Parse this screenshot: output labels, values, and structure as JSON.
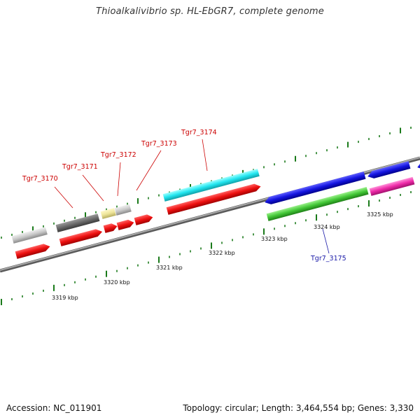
{
  "title": "Thioalkalivibrio sp. HL-EbGR7, complete genome",
  "footer": {
    "accession": "Accession: NC_011901",
    "topology": "Topology: circular; Length: 3,464,554 bp; Genes: 3,330"
  },
  "scale_labels": [
    "3319 kbp",
    "3320 kbp",
    "3321 kbp",
    "3322 kbp",
    "3323 kbp",
    "3324 kbp",
    "3325 kbp"
  ],
  "genes": [
    {
      "name": "Tgr7_3170",
      "color": "#cc0000"
    },
    {
      "name": "Tgr7_3171",
      "color": "#cc0000"
    },
    {
      "name": "Tgr7_3172",
      "color": "#cc0000"
    },
    {
      "name": "Tgr7_3173",
      "color": "#cc0000"
    },
    {
      "name": "Tgr7_3174",
      "color": "#cc0000"
    },
    {
      "name": "Tgr7_3175",
      "color": "#1a1aa8"
    }
  ],
  "feature_colors": {
    "cds_red": "#ee1111",
    "rna_grey": "#c8c8c8",
    "dark_grey": "#6a6a6a",
    "pale_yellow": "#eee59a",
    "cyan": "#22e6f0",
    "blue": "#1414e0",
    "green": "#44c838",
    "magenta": "#ee2aa8",
    "tick_green": "#1a7a1a",
    "backbone": "#888888"
  }
}
